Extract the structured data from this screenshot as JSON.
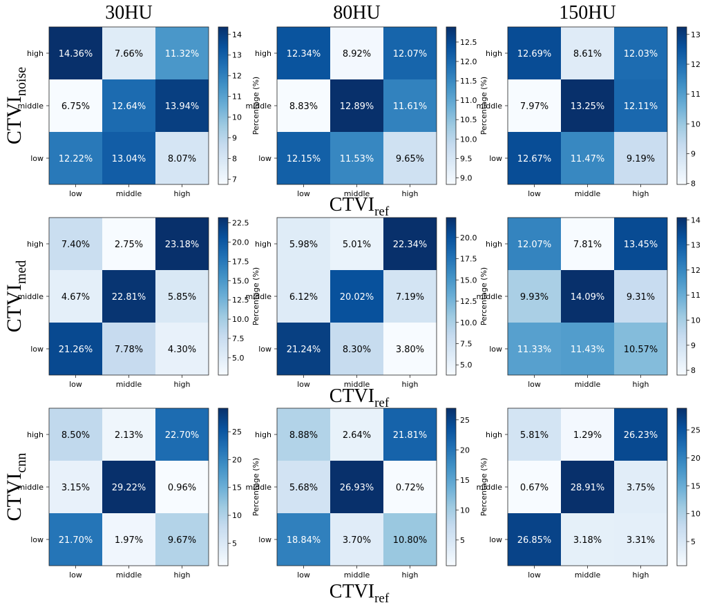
{
  "chart_data": {
    "type": "heatmap",
    "column_titles": [
      "30HU",
      "80HU",
      "150HU"
    ],
    "row_labels": [
      {
        "main": "CTVI",
        "sub": "noise"
      },
      {
        "main": "CTVI",
        "sub": "med"
      },
      {
        "main": "CTVI",
        "sub": "cnn"
      }
    ],
    "xlabel": {
      "main": "CTVI",
      "sub": "ref"
    },
    "x_categories": [
      "low",
      "middle",
      "high"
    ],
    "y_categories": [
      "high",
      "middle",
      "low"
    ],
    "colorbar_label": "Percentage (%)",
    "colormap": "Blues",
    "panels": [
      {
        "id": "noise-30HU",
        "values": [
          [
            "14.36%",
            "7.66%",
            "11.32%"
          ],
          [
            "6.75%",
            "12.64%",
            "13.94%"
          ],
          [
            "12.22%",
            "13.04%",
            "8.07%"
          ]
        ],
        "vmin": 6.75,
        "vmax": 14.36,
        "ticks": [
          "7",
          "8",
          "9",
          "10",
          "11",
          "12",
          "13",
          "14"
        ]
      },
      {
        "id": "noise-80HU",
        "values": [
          [
            "12.34%",
            "8.92%",
            "12.07%"
          ],
          [
            "8.83%",
            "12.89%",
            "11.61%"
          ],
          [
            "12.15%",
            "11.53%",
            "9.65%"
          ]
        ],
        "vmin": 8.83,
        "vmax": 12.89,
        "ticks": [
          "9.0",
          "9.5",
          "10.0",
          "10.5",
          "11.0",
          "11.5",
          "12.0",
          "12.5"
        ]
      },
      {
        "id": "noise-150HU",
        "values": [
          [
            "12.69%",
            "8.61%",
            "12.03%"
          ],
          [
            "7.97%",
            "13.25%",
            "12.11%"
          ],
          [
            "12.67%",
            "11.47%",
            "9.19%"
          ]
        ],
        "vmin": 7.97,
        "vmax": 13.25,
        "ticks": [
          "8",
          "9",
          "10",
          "11",
          "12",
          "13"
        ]
      },
      {
        "id": "med-30HU",
        "values": [
          [
            "7.40%",
            "2.75%",
            "23.18%"
          ],
          [
            "4.67%",
            "22.81%",
            "5.85%"
          ],
          [
            "21.26%",
            "7.78%",
            "4.30%"
          ]
        ],
        "vmin": 2.75,
        "vmax": 23.18,
        "ticks": [
          "5.0",
          "7.5",
          "10.0",
          "12.5",
          "15.0",
          "17.5",
          "20.0",
          "22.5"
        ]
      },
      {
        "id": "med-80HU",
        "values": [
          [
            "5.98%",
            "5.01%",
            "22.34%"
          ],
          [
            "6.12%",
            "20.02%",
            "7.19%"
          ],
          [
            "21.24%",
            "8.30%",
            "3.80%"
          ]
        ],
        "vmin": 3.8,
        "vmax": 22.34,
        "ticks": [
          "5.0",
          "7.5",
          "10.0",
          "12.5",
          "15.0",
          "17.5",
          "20.0"
        ]
      },
      {
        "id": "med-150HU",
        "values": [
          [
            "12.07%",
            "7.81%",
            "13.45%"
          ],
          [
            "9.93%",
            "14.09%",
            "9.31%"
          ],
          [
            "11.33%",
            "11.43%",
            "10.57%"
          ]
        ],
        "vmin": 7.81,
        "vmax": 14.09,
        "ticks": [
          "8",
          "9",
          "10",
          "11",
          "12",
          "13",
          "14"
        ]
      },
      {
        "id": "cnn-30HU",
        "values": [
          [
            "8.50%",
            "2.13%",
            "22.70%"
          ],
          [
            "3.15%",
            "29.22%",
            "0.96%"
          ],
          [
            "21.70%",
            "1.97%",
            "9.67%"
          ]
        ],
        "vmin": 0.96,
        "vmax": 29.22,
        "ticks": [
          "5",
          "10",
          "15",
          "20",
          "25"
        ]
      },
      {
        "id": "cnn-80HU",
        "values": [
          [
            "8.88%",
            "2.64%",
            "21.81%"
          ],
          [
            "5.68%",
            "26.93%",
            "0.72%"
          ],
          [
            "18.84%",
            "3.70%",
            "10.80%"
          ]
        ],
        "vmin": 0.72,
        "vmax": 26.93,
        "ticks": [
          "5",
          "10",
          "15",
          "20",
          "25"
        ]
      },
      {
        "id": "cnn-150HU",
        "values": [
          [
            "5.81%",
            "1.29%",
            "26.23%"
          ],
          [
            "0.67%",
            "28.91%",
            "3.75%"
          ],
          [
            "26.85%",
            "3.18%",
            "3.31%"
          ]
        ],
        "vmin": 0.67,
        "vmax": 28.91,
        "ticks": [
          "5",
          "10",
          "15",
          "20",
          "25"
        ]
      }
    ]
  }
}
